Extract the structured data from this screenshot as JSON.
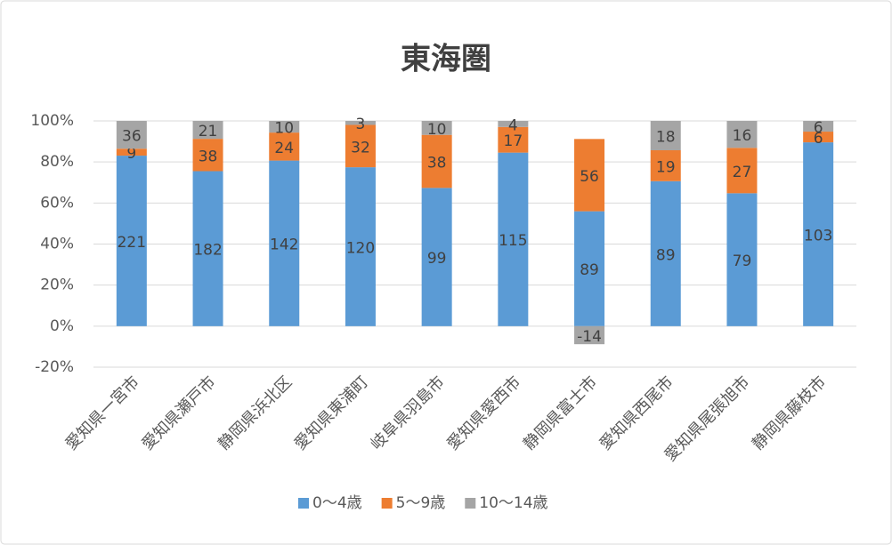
{
  "chart_data": {
    "type": "stacked_percent_bar",
    "title": "東海圏",
    "categories": [
      "愛知県一宮市",
      "愛知県瀬戸市",
      "静岡県浜北区",
      "愛知県東浦町",
      "岐阜県羽島市",
      "愛知県愛西市",
      "静岡県富士市",
      "愛知県西尾市",
      "愛知県尾張旭市",
      "静岡県藤枝市"
    ],
    "series": [
      {
        "name": "0～4歳",
        "color": "#5b9bd5",
        "values": [
          221,
          182,
          142,
          120,
          99,
          115,
          89,
          89,
          79,
          103
        ]
      },
      {
        "name": "5～9歳",
        "color": "#ed7d31",
        "values": [
          9,
          38,
          24,
          32,
          38,
          17,
          56,
          19,
          27,
          6
        ]
      },
      {
        "name": "10～14歳",
        "color": "#a5a5a5",
        "values": [
          36,
          21,
          10,
          3,
          10,
          4,
          -14,
          18,
          16,
          6
        ]
      }
    ],
    "ylim": [
      -20,
      100
    ],
    "yticks": [
      {
        "value": -20,
        "label": "-20%"
      },
      {
        "value": 0,
        "label": "0%"
      },
      {
        "value": 20,
        "label": "20%"
      },
      {
        "value": 40,
        "label": "40%"
      },
      {
        "value": 60,
        "label": "60%"
      },
      {
        "value": 80,
        "label": "80%"
      },
      {
        "value": 100,
        "label": "100%"
      }
    ],
    "grid": true,
    "legend": "bottom"
  }
}
